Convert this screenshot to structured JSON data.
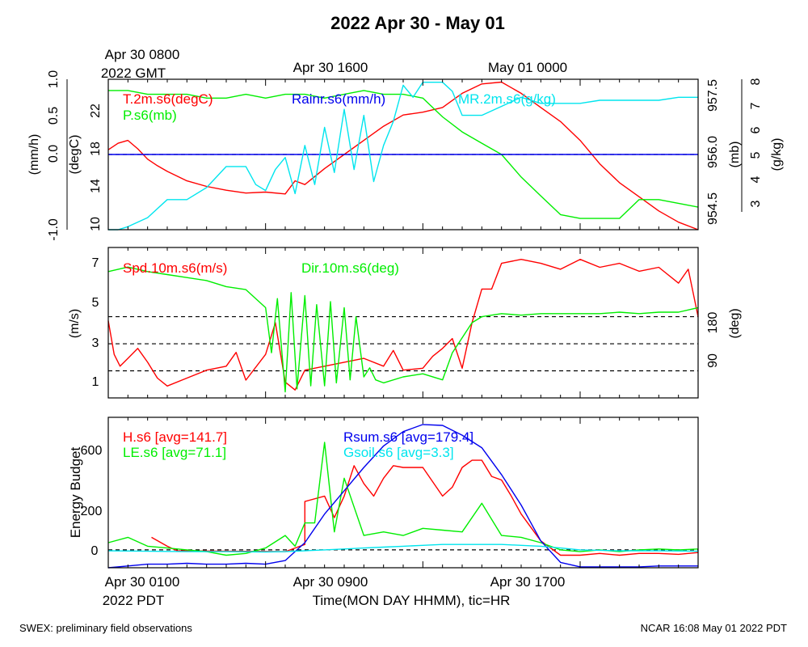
{
  "title": "2022 Apr 30 - May 01",
  "top_time_labels": {
    "first_line1": "Apr 30 0800",
    "first_line2": "2022 GMT",
    "second": "Apr 30 1600",
    "third": "May 01 0000"
  },
  "bottom_time_labels": {
    "first_line1": "Apr 30 0100",
    "first_line2": "2022 PDT",
    "second": "Apr 30 0900",
    "third": "Apr 30 1700"
  },
  "xaxis_title": "Time(MON DAY HHMM), tic=HR",
  "footer": {
    "left": "SWEX: preliminary field observations",
    "right": "NCAR 16:08 May 01 2022 PDT"
  },
  "colors": {
    "red": "#ff0000",
    "green": "#00ee00",
    "blue": "#0000ee",
    "cyan": "#00e5ee",
    "black": "#000000"
  },
  "chart_data": [
    {
      "type": "line",
      "panel": "thermo",
      "time_range_hours_pdt": [
        1,
        31
      ],
      "axes": {
        "rain": {
          "label": "(mm/h)",
          "range": [
            -1.0,
            1.0
          ],
          "ticks": [
            "-1.0",
            "0.0",
            "0.5",
            "1.0"
          ]
        },
        "temp": {
          "label": "(degC)",
          "range": [
            10,
            26
          ],
          "ticks": [
            "10",
            "14",
            "18",
            "22"
          ]
        },
        "pres": {
          "label": "(mb)",
          "range": [
            954.0,
            958.0
          ],
          "ticks": [
            "954.5",
            "956.0",
            "957.5"
          ]
        },
        "mr": {
          "label": "(g/kg)",
          "range": [
            3,
            8
          ],
          "ticks": [
            "3",
            "4",
            "5",
            "6",
            "7",
            "8"
          ]
        }
      },
      "reference_line": {
        "axis": "rain",
        "value": 0.0
      },
      "series": [
        {
          "name": "T.2m.s6(degC)",
          "color": "red",
          "axis": "temp",
          "x": [
            1,
            1.5,
            2,
            2.5,
            3,
            3.5,
            4,
            5,
            6,
            7,
            8,
            9,
            10,
            10.5,
            11,
            12,
            13,
            14,
            15,
            16,
            17,
            18,
            19,
            20,
            21,
            22,
            23,
            24,
            25,
            26,
            27,
            28,
            29,
            30,
            31
          ],
          "y": [
            18.5,
            19.2,
            19.5,
            18.6,
            17.5,
            16.8,
            16.2,
            15.2,
            14.6,
            14.2,
            13.9,
            14.0,
            13.8,
            15.2,
            14.8,
            16.5,
            18.0,
            19.5,
            21.0,
            22.2,
            22.5,
            23.0,
            24.5,
            25.5,
            25.7,
            24.5,
            23.0,
            21.5,
            19.5,
            17.0,
            15.0,
            13.5,
            12.0,
            10.8,
            10.0
          ]
        },
        {
          "name": "P.s6(mb)",
          "color": "green",
          "axis": "pres",
          "x": [
            1,
            2,
            3,
            4,
            5,
            6,
            7,
            8,
            9,
            10,
            11,
            12,
            13,
            14,
            15,
            16,
            17,
            18,
            19,
            20,
            21,
            22,
            23,
            24,
            25,
            26,
            27,
            28,
            29,
            30,
            31
          ],
          "y": [
            957.7,
            957.7,
            957.6,
            957.6,
            957.6,
            957.5,
            957.5,
            957.6,
            957.5,
            957.6,
            957.6,
            957.5,
            957.6,
            957.7,
            957.6,
            957.6,
            957.5,
            957.0,
            956.6,
            956.3,
            956.0,
            955.4,
            954.9,
            954.4,
            954.3,
            954.3,
            954.3,
            954.8,
            954.8,
            954.7,
            954.6
          ]
        },
        {
          "name": "Rainr.s6(mm/h)",
          "color": "blue",
          "axis": "rain",
          "x": [
            1,
            31
          ],
          "y": [
            0.0,
            0.0
          ]
        },
        {
          "name": "MR.2m.s6(g/kg)",
          "color": "cyan",
          "axis": "mr",
          "x": [
            1,
            1.5,
            2,
            3,
            4,
            5,
            6,
            7,
            8,
            8.5,
            9,
            9.5,
            10,
            10.5,
            11,
            11.5,
            12,
            12.5,
            13,
            13.5,
            14,
            14.5,
            15,
            15.5,
            16,
            16.5,
            17,
            17.5,
            18,
            18.5,
            19,
            20,
            21,
            22,
            23,
            24,
            25,
            26,
            27,
            28,
            29,
            30,
            31
          ],
          "y": [
            3.0,
            2.9,
            3.1,
            3.4,
            4.0,
            4.0,
            4.4,
            5.1,
            5.1,
            4.5,
            4.3,
            5.0,
            5.4,
            4.2,
            5.8,
            4.5,
            6.4,
            4.9,
            7.0,
            5.0,
            6.8,
            4.6,
            5.8,
            6.6,
            7.8,
            7.4,
            7.9,
            7.9,
            7.9,
            7.6,
            6.8,
            6.8,
            7.1,
            7.4,
            7.2,
            7.2,
            7.2,
            7.3,
            7.3,
            7.3,
            7.3,
            7.4,
            7.4
          ]
        }
      ]
    },
    {
      "type": "line",
      "panel": "wind",
      "time_range_hours_pdt": [
        1,
        31
      ],
      "axes": {
        "spd": {
          "label": "(m/s)",
          "range": [
            0,
            7.6
          ],
          "ticks": [
            "1",
            "3",
            "5",
            "7"
          ]
        },
        "dir": {
          "label": "(deg)",
          "range": [
            0,
            500
          ],
          "ticks": [
            "90",
            "180"
          ]
        }
      },
      "reference_lines": [
        {
          "axis": "dir",
          "value": 90
        },
        {
          "axis": "dir",
          "value": 180
        },
        {
          "axis": "dir",
          "value": 270
        }
      ],
      "series": [
        {
          "name": "Spd.10m.s6(m/s)",
          "color": "red",
          "axis": "spd",
          "x": [
            1,
            1.3,
            1.6,
            2,
            2.5,
            3,
            3.5,
            4,
            5,
            6,
            7,
            7.5,
            8,
            9,
            9.5,
            10,
            10.5,
            11,
            12,
            13,
            14,
            15,
            15.5,
            16,
            17,
            17.5,
            18,
            18.5,
            19,
            19.5,
            20,
            20.5,
            21,
            22,
            23,
            24,
            25,
            26,
            27,
            28,
            29,
            30,
            30.5,
            31
          ],
          "y": [
            3.9,
            2.2,
            1.6,
            2.0,
            2.5,
            1.8,
            1.0,
            0.6,
            1.0,
            1.4,
            1.6,
            2.3,
            0.9,
            2.2,
            3.8,
            0.8,
            0.4,
            1.4,
            1.6,
            1.8,
            2.0,
            1.6,
            2.4,
            1.4,
            1.5,
            2.1,
            2.5,
            3.0,
            1.5,
            3.8,
            5.5,
            5.5,
            6.8,
            7.0,
            6.8,
            6.5,
            7.0,
            6.6,
            6.8,
            6.4,
            6.6,
            5.8,
            6.5,
            4.1
          ]
        },
        {
          "name": "Dir.10m.s6(deg)",
          "color": "green",
          "axis": "dir",
          "x": [
            1,
            2,
            3,
            4,
            5,
            6,
            7,
            8,
            9,
            9.3,
            9.6,
            10,
            10.3,
            10.6,
            11,
            11.3,
            11.6,
            12,
            12.3,
            12.6,
            13,
            13.3,
            13.6,
            14,
            14.3,
            14.6,
            15,
            16,
            17,
            18,
            18.5,
            19,
            19.5,
            20,
            21,
            22,
            23,
            24,
            25,
            26,
            27,
            28,
            29,
            30,
            31
          ],
          "y": [
            420,
            435,
            420,
            410,
            400,
            390,
            370,
            360,
            300,
            150,
            330,
            20,
            350,
            30,
            340,
            40,
            310,
            40,
            320,
            50,
            300,
            60,
            270,
            70,
            100,
            60,
            50,
            70,
            80,
            60,
            150,
            200,
            250,
            270,
            280,
            275,
            280,
            280,
            280,
            280,
            285,
            280,
            285,
            285,
            300
          ]
        }
      ]
    },
    {
      "type": "line",
      "panel": "energy",
      "time_range_hours_pdt": [
        1,
        31
      ],
      "axes": {
        "y": {
          "label": "Energy Budget",
          "range": [
            -100,
            740
          ],
          "ticks": [
            "0",
            "200",
            "600"
          ]
        }
      },
      "reference_line": {
        "axis": "y",
        "value": 0
      },
      "series": [
        {
          "name": "H.s6 [avg=141.7]",
          "color": "red",
          "x": [
            3.2,
            4,
            4.5,
            10,
            10.5,
            11,
            11,
            12,
            12.5,
            13,
            13.5,
            14,
            14.5,
            15,
            15.5,
            16,
            17,
            18,
            18.5,
            19,
            19.5,
            20,
            20.5,
            21,
            21.5,
            22,
            23,
            24,
            25,
            26,
            27,
            28,
            29,
            30,
            31
          ],
          "y": [
            70,
            20,
            -5,
            -10,
            10,
            30,
            270,
            300,
            180,
            300,
            470,
            370,
            300,
            400,
            470,
            460,
            460,
            300,
            350,
            460,
            500,
            500,
            410,
            390,
            300,
            200,
            50,
            -30,
            -30,
            -20,
            -30,
            -20,
            -20,
            -25,
            -15
          ]
        },
        {
          "name": "LE.s6 [avg=71.1]",
          "color": "green",
          "x": [
            1,
            2,
            3,
            4,
            5,
            6,
            7,
            8,
            9,
            10,
            10.5,
            11,
            11.5,
            12,
            12.5,
            13,
            14,
            15,
            16,
            17,
            18,
            19,
            20,
            21,
            22,
            23,
            24,
            25,
            26,
            27,
            28,
            29,
            30,
            31
          ],
          "y": [
            40,
            70,
            20,
            10,
            0,
            -10,
            -30,
            -20,
            10,
            80,
            20,
            150,
            150,
            600,
            100,
            400,
            80,
            100,
            80,
            120,
            110,
            100,
            260,
            80,
            70,
            40,
            0,
            -10,
            0,
            -10,
            0,
            5,
            0,
            5
          ]
        },
        {
          "name": "Rsum.s6 [avg=179.4]",
          "color": "blue",
          "x": [
            1,
            2,
            3,
            4,
            5,
            6,
            7,
            8,
            9,
            10,
            11,
            12,
            13,
            14,
            15,
            16,
            17,
            18,
            19,
            20,
            21,
            22,
            23,
            24,
            25,
            26,
            27,
            28,
            29,
            30,
            31
          ],
          "y": [
            -100,
            -90,
            -80,
            -80,
            -75,
            -80,
            -80,
            -75,
            -80,
            -60,
            40,
            200,
            330,
            460,
            580,
            660,
            700,
            695,
            640,
            570,
            420,
            250,
            50,
            -70,
            -95,
            -95,
            -95,
            -95,
            -90,
            -90,
            -90
          ]
        },
        {
          "name": "Gsoil.s6 [avg=3.3]",
          "color": "cyan",
          "x": [
            1,
            3,
            5,
            7,
            9,
            10,
            11,
            12,
            13,
            14,
            15,
            16,
            17,
            18,
            19,
            20,
            21,
            22,
            23,
            24,
            25,
            27,
            29,
            31
          ],
          "y": [
            -5,
            -8,
            -10,
            -10,
            -12,
            -10,
            -5,
            0,
            5,
            10,
            15,
            20,
            25,
            30,
            30,
            30,
            30,
            25,
            20,
            10,
            0,
            -5,
            -5,
            -8
          ]
        }
      ]
    }
  ]
}
